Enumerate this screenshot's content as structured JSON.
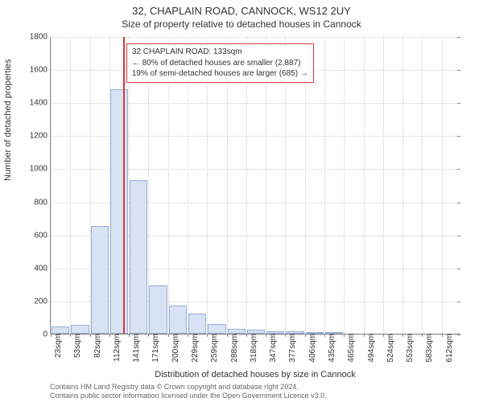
{
  "header": {
    "address": "32, CHAPLAIN ROAD, CANNOCK, WS12 2UY",
    "subtitle": "Size of property relative to detached houses in Cannock"
  },
  "chart": {
    "type": "histogram",
    "ylabel": "Number of detached properties",
    "xlabel": "Distribution of detached houses by size in Cannock",
    "ylim": [
      0,
      1800
    ],
    "ytick_step": 200,
    "x_categories": [
      "23sqm",
      "53sqm",
      "82sqm",
      "112sqm",
      "141sqm",
      "171sqm",
      "200sqm",
      "229sqm",
      "259sqm",
      "288sqm",
      "318sqm",
      "347sqm",
      "377sqm",
      "406sqm",
      "435sqm",
      "465sqm",
      "494sqm",
      "524sqm",
      "553sqm",
      "583sqm",
      "612sqm"
    ],
    "values": [
      45,
      55,
      650,
      1480,
      930,
      290,
      170,
      120,
      60,
      30,
      25,
      15,
      15,
      10,
      5,
      0,
      0,
      0,
      0,
      0,
      0
    ],
    "bar_fill": "#d7e2f4",
    "bar_border": "#9ab0d6",
    "grid_color": "#cfcfcf",
    "axis_color": "#888888",
    "background_color": "#ffffff",
    "reference": {
      "index": 3.7,
      "color": "#d73a3a",
      "box": {
        "lines": [
          "32 CHAPLAIN ROAD: 133sqm",
          "← 80% of detached houses are smaller (2,887)",
          "19% of semi-detached houses are larger (685) →"
        ]
      }
    }
  },
  "footer": {
    "line1": "Contains HM Land Registry data © Crown copyright and database right 2024.",
    "line2": "Contains public sector information licensed under the Open Government Licence v3.0."
  }
}
